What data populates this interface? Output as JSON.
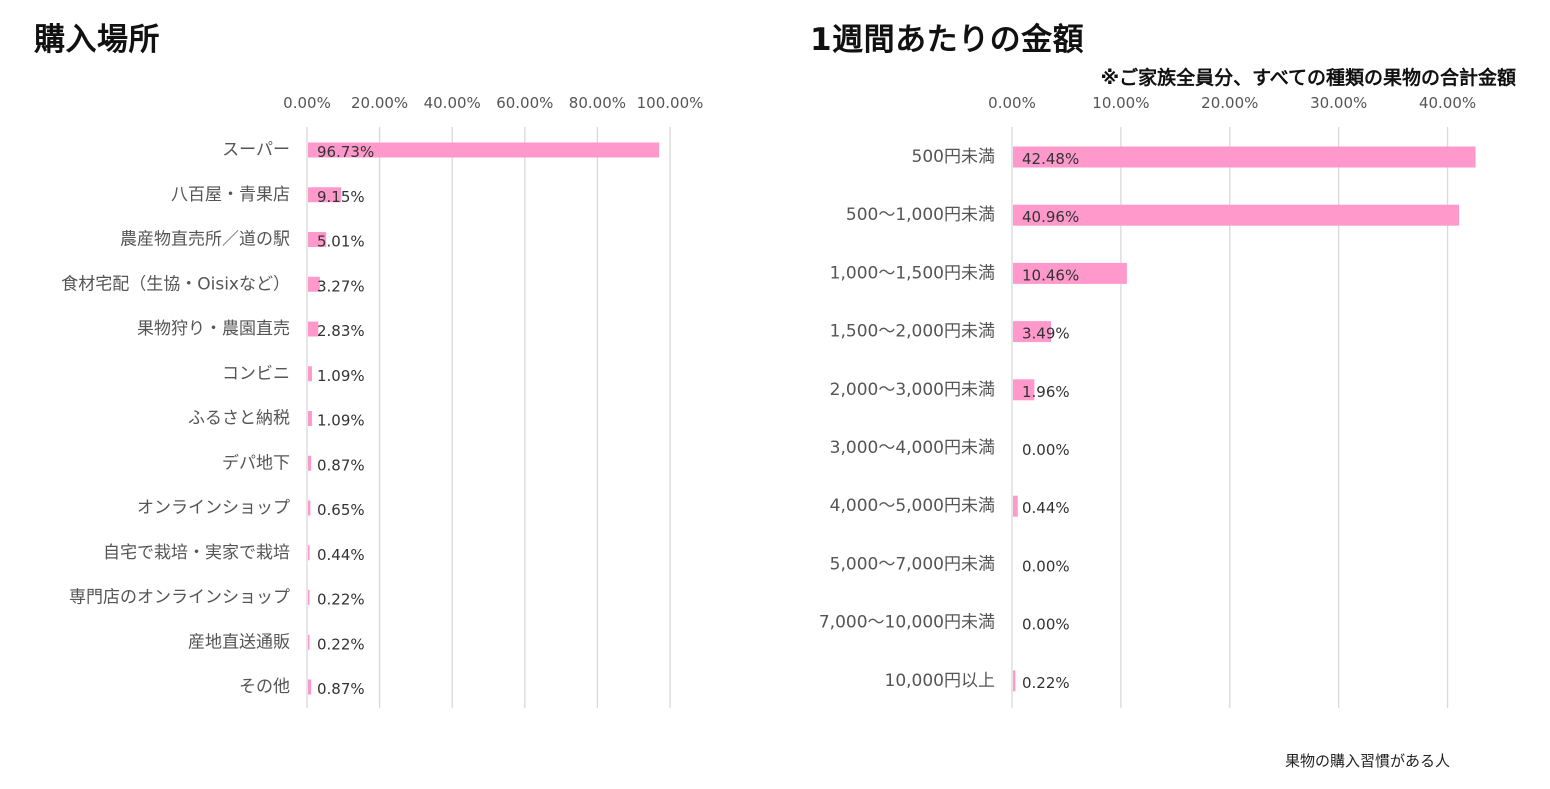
{
  "titles": {
    "left": "購入場所",
    "right": "1週間あたりの金額",
    "subtitle_right": "※ご家族全員分、すべての種類の果物の合計金額"
  },
  "footnote": "果物の購入習慣がある人",
  "colors": {
    "bar": "#ff99cc",
    "grid": "#d9d9d9"
  },
  "chart_data": [
    {
      "type": "bar",
      "orientation": "horizontal",
      "title": "購入場所",
      "xlim": [
        0,
        100
      ],
      "ticks": [
        0,
        20,
        40,
        60,
        80,
        100
      ],
      "tick_labels": [
        "0.00%",
        "20.00%",
        "40.00%",
        "60.00%",
        "80.00%",
        "100.00%"
      ],
      "grid": true,
      "categories": [
        "スーパー",
        "八百屋・青果店",
        "農産物直売所／道の駅",
        "食材宅配（生協・Oisixなど）",
        "果物狩り・農園直売",
        "コンビニ",
        "ふるさと納税",
        "デパ地下",
        "オンラインショップ",
        "自宅で栽培・実家で栽培",
        "専門店のオンラインショップ",
        "産地直送通販",
        "その他"
      ],
      "values": [
        96.73,
        9.15,
        5.01,
        3.27,
        2.83,
        1.09,
        1.09,
        0.87,
        0.65,
        0.44,
        0.22,
        0.22,
        0.87
      ],
      "value_labels": [
        "96.73%",
        "9.15%",
        "5.01%",
        "3.27%",
        "2.83%",
        "1.09%",
        "1.09%",
        "0.87%",
        "0.65%",
        "0.44%",
        "0.22%",
        "0.22%",
        "0.87%"
      ]
    },
    {
      "type": "bar",
      "orientation": "horizontal",
      "title": "1週間あたりの金額",
      "subtitle": "※ご家族全員分、すべての種類の果物の合計金額",
      "xlim": [
        0,
        45
      ],
      "ticks": [
        0,
        10,
        20,
        30,
        40
      ],
      "tick_labels": [
        "0.00%",
        "10.00%",
        "20.00%",
        "30.00%",
        "40.00%"
      ],
      "grid": true,
      "categories": [
        "500円未満",
        "500〜1,000円未満",
        "1,000〜1,500円未満",
        "1,500〜2,000円未満",
        "2,000〜3,000円未満",
        "3,000〜4,000円未満",
        "4,000〜5,000円未満",
        "5,000〜7,000円未満",
        "7,000〜10,000円未満",
        "10,000円以上"
      ],
      "values": [
        42.48,
        40.96,
        10.46,
        3.49,
        1.96,
        0.0,
        0.44,
        0.0,
        0.0,
        0.22
      ],
      "value_labels": [
        "42.48%",
        "40.96%",
        "10.46%",
        "3.49%",
        "1.96%",
        "0.00%",
        "0.44%",
        "0.00%",
        "0.00%",
        "0.22%"
      ]
    }
  ]
}
